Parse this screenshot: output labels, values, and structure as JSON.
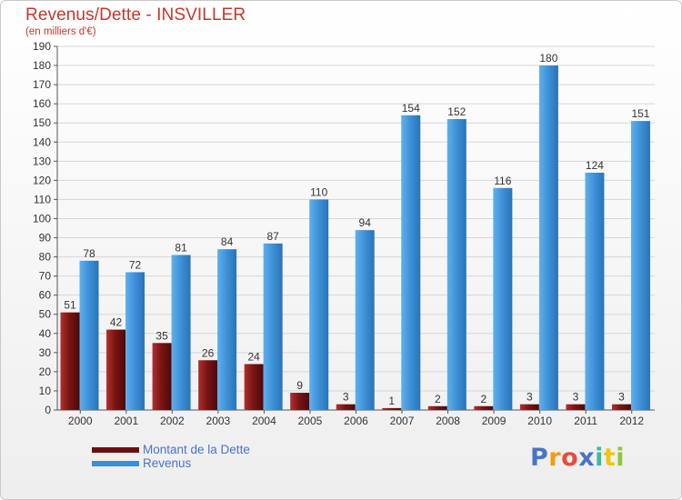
{
  "title": "Revenus/Dette - INSVILLER",
  "subtitle": "(en milliers d'€)",
  "logo": {
    "text": "Proxiti",
    "colors": [
      "#4a73c8",
      "#f39c12",
      "#e74c3c",
      "#4a73c8",
      "#3dbb9c",
      "#f1c40f",
      "#8ec63f"
    ]
  },
  "chart_data": {
    "type": "bar",
    "title": "Revenus/Dette - INSVILLER",
    "ylabel": "(en milliers d'€)",
    "categories": [
      "2000",
      "2001",
      "2002",
      "2003",
      "2004",
      "2005",
      "2006",
      "2007",
      "2008",
      "2009",
      "2010",
      "2011",
      "2012"
    ],
    "series": [
      {
        "name": "Montant de la Dette",
        "color": "#7a1414",
        "values": [
          51,
          42,
          35,
          26,
          24,
          9,
          3,
          1,
          2,
          2,
          3,
          3,
          3
        ]
      },
      {
        "name": "Revenus",
        "color": "#3d8fd6",
        "values": [
          78,
          72,
          81,
          84,
          87,
          110,
          94,
          154,
          152,
          116,
          180,
          124,
          151
        ]
      }
    ],
    "ylim": [
      0,
      190
    ],
    "yticks": [
      0,
      10,
      20,
      30,
      40,
      50,
      60,
      70,
      80,
      90,
      100,
      110,
      120,
      130,
      140,
      150,
      160,
      170,
      180,
      190
    ],
    "grid": true,
    "legend": "bottom-left"
  }
}
